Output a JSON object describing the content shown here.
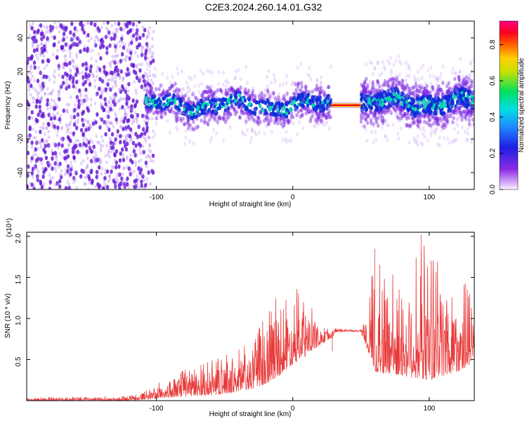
{
  "title": "C2E3.2024.260.14.01.G32",
  "colors": {
    "snr_line": "#e83a3a",
    "band_core": "#0d2bd8",
    "band_edge": "#7b1fe0",
    "band_hot": "#00d8b0",
    "scatter": "#6a1fd6"
  },
  "chart_data": [
    {
      "type": "heatmap",
      "panel": "top",
      "xlabel": "Height of straight line (km)",
      "ylabel": "Frequency (Hz)",
      "xlim": [
        -195,
        133
      ],
      "ylim": [
        -50,
        50
      ],
      "x_ticks": [
        -100,
        0,
        100
      ],
      "y_ticks": [
        -40,
        -20,
        0,
        20,
        40
      ],
      "grid": false,
      "colorbar": {
        "label": "Normalized spectral amplitude",
        "range": [
          0,
          0.93
        ],
        "ticks": [
          0.0,
          0.2,
          0.4,
          0.6,
          0.8
        ],
        "colormap": "rainbow (violet-blue-cyan-green-yellow-red-magenta)"
      },
      "regions": [
        {
          "x": [
            -195,
            -108
          ],
          "description": "broadband scattered energy",
          "freq_range": [
            -50,
            50
          ]
        },
        {
          "x": [
            -108,
            28
          ],
          "description": "narrow band near 0 Hz",
          "freq_range": [
            -12,
            12
          ]
        },
        {
          "x": [
            28,
            50
          ],
          "description": "strong tonal line",
          "freq": 0
        },
        {
          "x": [
            50,
            133
          ],
          "description": "narrow band near 0 Hz",
          "freq_range": [
            -15,
            15
          ]
        }
      ]
    },
    {
      "type": "line",
      "panel": "bottom",
      "xlabel": "Height of straight line (km)",
      "ylabel": "SNR (10 * v/v)",
      "y_multiplier": "(x10⁴)",
      "xlim": [
        -195,
        133
      ],
      "ylim": [
        0,
        2.05
      ],
      "x_ticks": [
        -100,
        0,
        100
      ],
      "y_ticks": [
        0.5,
        1.0,
        1.5,
        2.0
      ],
      "grid": false,
      "envelope": {
        "x": [
          -195,
          -120,
          -105,
          -90,
          -70,
          -50,
          -30,
          -20,
          -10,
          0,
          10,
          20,
          30,
          40,
          50,
          55,
          60,
          80,
          100,
          120,
          133
        ],
        "base": [
          0.0,
          0.0,
          0.02,
          0.04,
          0.06,
          0.08,
          0.14,
          0.2,
          0.3,
          0.45,
          0.55,
          0.68,
          0.78,
          0.82,
          0.82,
          0.6,
          0.35,
          0.3,
          0.25,
          0.35,
          0.45
        ],
        "peak": [
          0.04,
          0.06,
          0.16,
          0.3,
          0.45,
          0.55,
          0.75,
          1.1,
          1.4,
          1.4,
          1.3,
          0.9,
          0.88,
          0.87,
          0.86,
          1.1,
          1.85,
          1.55,
          2.02,
          1.6,
          1.3
        ]
      },
      "notable_values": [
        {
          "x": 29,
          "y": 0.85,
          "note": "flat plateau"
        },
        {
          "x": 60,
          "y": 1.85,
          "note": "spike"
        },
        {
          "x": 94,
          "y": 2.02,
          "note": "max spike"
        }
      ]
    }
  ]
}
